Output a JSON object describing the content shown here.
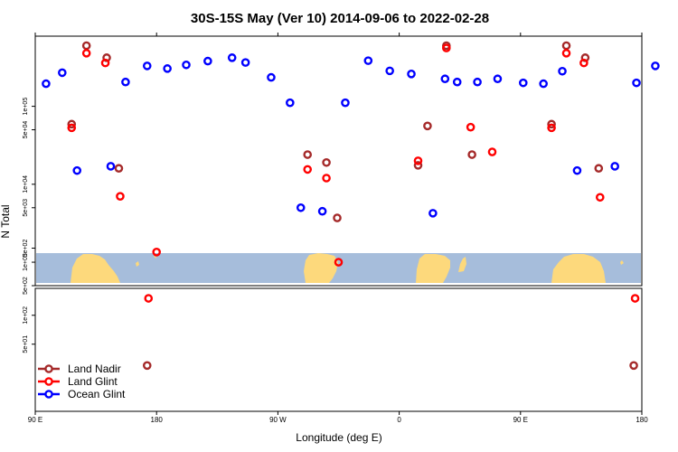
{
  "chart_data": {
    "type": "scatter",
    "title": "30S-15S May (Ver 10)   2014-09-06 to 2022-02-28",
    "xlabel": "Longitude (deg E)",
    "ylabel": "N Total",
    "x_ticks": [
      {
        "value": 90,
        "label": "90 E"
      },
      {
        "value": 180,
        "label": "180"
      },
      {
        "value": 270,
        "label": "90 W"
      },
      {
        "value": 360,
        "label": "0"
      },
      {
        "value": 450,
        "label": "90 E"
      },
      {
        "value": 540,
        "label": "180"
      }
    ],
    "xlim": [
      90,
      540
    ],
    "y_scale": "log",
    "top_panel": {
      "ylim_log10": [
        2.699,
        5.9
      ],
      "y_ticks": [
        {
          "value": 1000,
          "label": "1e+03"
        },
        {
          "value": 5000,
          "label": "5e+03"
        },
        {
          "value": 10000,
          "label": "1e+04"
        },
        {
          "value": 50000,
          "label": "5e+04"
        },
        {
          "value": 100000,
          "label": "1e+05"
        },
        {
          "value": 500,
          "label": "5e+02"
        }
      ]
    },
    "bottom_panel": {
      "ylim_log10": [
        1.0,
        2.28
      ],
      "y_ticks": [
        {
          "value": 50,
          "label": "5e+01"
        },
        {
          "value": 100,
          "label": "1e+02"
        },
        {
          "value": 500,
          "label": "5e+02"
        }
      ]
    },
    "series": [
      {
        "name": "Land Nadir",
        "color": "#a52a2a",
        "top_points": [
          [
            117,
            59000
          ],
          [
            128,
            600000
          ],
          [
            143,
            420000
          ],
          [
            152,
            16000
          ],
          [
            292,
            24000
          ],
          [
            306,
            19000
          ],
          [
            314,
            3700
          ],
          [
            374,
            17500
          ],
          [
            381,
            56000
          ],
          [
            395,
            600000
          ],
          [
            414,
            24000
          ],
          [
            473,
            59000
          ],
          [
            484,
            600000
          ],
          [
            498,
            420000
          ],
          [
            508,
            16000
          ]
        ],
        "bottom_points": [
          [
            173,
            30
          ],
          [
            534,
            30
          ]
        ]
      },
      {
        "name": "Land Glint",
        "color": "#ff0000",
        "top_points": [
          [
            117,
            53000
          ],
          [
            128,
            480000
          ],
          [
            142,
            360000
          ],
          [
            153,
            7000
          ],
          [
            180,
            1350
          ],
          [
            292,
            15500
          ],
          [
            306,
            12000
          ],
          [
            315,
            1000
          ],
          [
            374,
            20000
          ],
          [
            395,
            560000
          ],
          [
            413,
            54000
          ],
          [
            429,
            26000
          ],
          [
            473,
            53000
          ],
          [
            484,
            480000
          ],
          [
            497,
            360000
          ],
          [
            509,
            6800
          ]
        ],
        "bottom_points": [
          [
            174,
            150
          ],
          [
            535,
            150
          ]
        ]
      },
      {
        "name": "Ocean Glint",
        "color": "#0000ff",
        "top_points": [
          [
            98,
            195000
          ],
          [
            110,
            270000
          ],
          [
            121,
            15000
          ],
          [
            146,
            17000
          ],
          [
            157,
            205000
          ],
          [
            173,
            330000
          ],
          [
            188,
            305000
          ],
          [
            202,
            340000
          ],
          [
            218,
            380000
          ],
          [
            236,
            420000
          ],
          [
            246,
            365000
          ],
          [
            265,
            235000
          ],
          [
            279,
            111000
          ],
          [
            287,
            5000
          ],
          [
            303,
            4500
          ],
          [
            320,
            111000
          ],
          [
            337,
            385000
          ],
          [
            353,
            285000
          ],
          [
            369,
            260000
          ],
          [
            385,
            4250
          ],
          [
            394,
            225000
          ],
          [
            403,
            205000
          ],
          [
            418,
            205000
          ],
          [
            433,
            225000
          ],
          [
            452,
            200000
          ],
          [
            467,
            195000
          ],
          [
            481,
            282000
          ],
          [
            492,
            15000
          ],
          [
            520,
            17000
          ],
          [
            536,
            200000
          ],
          [
            550,
            330000
          ]
        ],
        "bottom_points": []
      }
    ]
  },
  "land_colors": {
    "ocean": "#a6bddb",
    "land": "#fdd97c"
  }
}
